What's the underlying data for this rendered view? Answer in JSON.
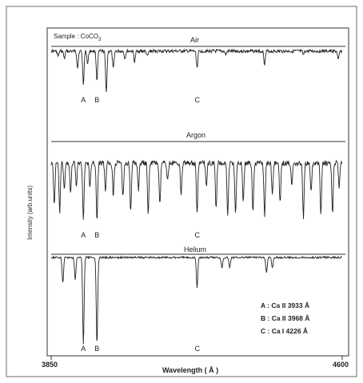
{
  "chart_data": {
    "type": "line",
    "sample_label": "Sample : CoCO",
    "sample_subscript": "3",
    "xlabel": "Wavelength ( Å )",
    "ylabel": "Intensity (arb.units)",
    "xlim": [
      3850,
      4600
    ],
    "x_tick_labels": [
      "3850",
      "4600"
    ],
    "panels": [
      {
        "name": "Air",
        "dips": [
          {
            "x": 3868,
            "depth": 0.15
          },
          {
            "x": 3884,
            "depth": 0.2
          },
          {
            "x": 3918,
            "depth": 0.45
          },
          {
            "x": 3933,
            "depth": 0.9
          },
          {
            "x": 3944,
            "depth": 0.35
          },
          {
            "x": 3968,
            "depth": 0.8
          },
          {
            "x": 3992,
            "depth": 1.15
          },
          {
            "x": 4010,
            "depth": 0.5
          },
          {
            "x": 4040,
            "depth": 0.2
          },
          {
            "x": 4065,
            "depth": 0.3
          },
          {
            "x": 4098,
            "depth": 0.15
          },
          {
            "x": 4226,
            "depth": 0.45
          },
          {
            "x": 4300,
            "depth": 0.1
          },
          {
            "x": 4400,
            "depth": 0.35
          },
          {
            "x": 4500,
            "depth": 0.1
          },
          {
            "x": 4590,
            "depth": 0.25
          }
        ],
        "line_labels": [
          {
            "text": "A",
            "x": 3933
          },
          {
            "text": "B",
            "x": 3968
          },
          {
            "text": "C",
            "x": 4226
          }
        ]
      },
      {
        "name": "Argon",
        "dips": [
          {
            "x": 3858,
            "depth": 0.7
          },
          {
            "x": 3872,
            "depth": 0.85
          },
          {
            "x": 3884,
            "depth": 0.45
          },
          {
            "x": 3900,
            "depth": 0.5
          },
          {
            "x": 3915,
            "depth": 0.4
          },
          {
            "x": 3933,
            "depth": 0.95
          },
          {
            "x": 3950,
            "depth": 0.4
          },
          {
            "x": 3968,
            "depth": 1.0
          },
          {
            "x": 3990,
            "depth": 0.5
          },
          {
            "x": 4010,
            "depth": 0.55
          },
          {
            "x": 4035,
            "depth": 0.6
          },
          {
            "x": 4055,
            "depth": 0.85
          },
          {
            "x": 4075,
            "depth": 0.45
          },
          {
            "x": 4100,
            "depth": 0.85
          },
          {
            "x": 4130,
            "depth": 0.75
          },
          {
            "x": 4150,
            "depth": 0.3
          },
          {
            "x": 4185,
            "depth": 0.55
          },
          {
            "x": 4226,
            "depth": 0.9
          },
          {
            "x": 4250,
            "depth": 0.4
          },
          {
            "x": 4275,
            "depth": 0.8
          },
          {
            "x": 4305,
            "depth": 0.9
          },
          {
            "x": 4325,
            "depth": 0.9
          },
          {
            "x": 4345,
            "depth": 0.7
          },
          {
            "x": 4370,
            "depth": 0.85
          },
          {
            "x": 4400,
            "depth": 0.9
          },
          {
            "x": 4420,
            "depth": 0.55
          },
          {
            "x": 4440,
            "depth": 0.7
          },
          {
            "x": 4470,
            "depth": 0.35
          },
          {
            "x": 4500,
            "depth": 0.95
          },
          {
            "x": 4520,
            "depth": 0.5
          },
          {
            "x": 4545,
            "depth": 0.9
          },
          {
            "x": 4575,
            "depth": 0.85
          },
          {
            "x": 4592,
            "depth": 0.4
          }
        ],
        "line_labels": [
          {
            "text": "A",
            "x": 3933
          },
          {
            "text": "B",
            "x": 3968
          },
          {
            "text": "C",
            "x": 4226
          }
        ]
      },
      {
        "name": "Helium",
        "dips": [
          {
            "x": 3880,
            "depth": 0.3
          },
          {
            "x": 3912,
            "depth": 0.25
          },
          {
            "x": 3933,
            "depth": 1.0
          },
          {
            "x": 3968,
            "depth": 1.0
          },
          {
            "x": 4226,
            "depth": 0.35
          },
          {
            "x": 4290,
            "depth": 0.12
          },
          {
            "x": 4310,
            "depth": 0.12
          },
          {
            "x": 4405,
            "depth": 0.18
          },
          {
            "x": 4420,
            "depth": 0.12
          }
        ],
        "line_labels": [
          {
            "text": "A",
            "x": 3933
          },
          {
            "text": "B",
            "x": 3968
          },
          {
            "text": "C",
            "x": 4226
          }
        ]
      }
    ],
    "legend": [
      {
        "label": "A : Ca II 3933 Å"
      },
      {
        "label": "B : Ca II 3968 Å"
      },
      {
        "label": "C : Ca I  4226 Å"
      }
    ],
    "colors": {
      "ink": "#222222",
      "frame": "#444444"
    }
  }
}
